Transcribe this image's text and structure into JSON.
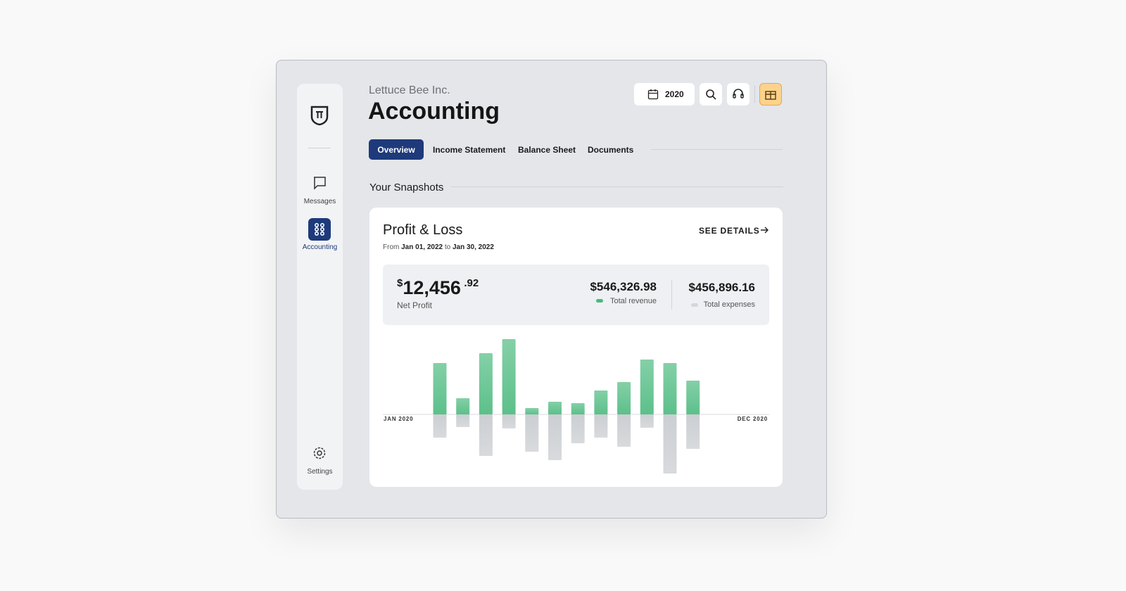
{
  "company": "Lettuce Bee Inc.",
  "title": "Accounting",
  "toolbar": {
    "year": "2020"
  },
  "sidebar": {
    "items": [
      {
        "label": "Messages"
      },
      {
        "label": "Accounting"
      },
      {
        "label": "Settings"
      }
    ]
  },
  "tabs": [
    "Overview",
    "Income Statement",
    "Balance Sheet",
    "Documents"
  ],
  "section_title": "Your Snapshots",
  "card": {
    "title": "Profit & Loss",
    "see_details": "SEE DETAILS",
    "range": {
      "prefix": "From",
      "start": "Jan 01, 2022",
      "joiner": "to",
      "end": "Jan 30, 2022"
    },
    "net_profit": {
      "currency": "$",
      "whole": "12,456",
      "cents": ".92",
      "label": "Net Profit"
    },
    "revenue": {
      "amount": "$546,326.98",
      "label": "Total revenue",
      "color": "#4cb97a"
    },
    "expenses": {
      "amount": "$456,896.16",
      "label": "Total expenses",
      "color": "#d3d6da"
    },
    "chart": {
      "type": "bar",
      "x_start": "JAN 2020",
      "x_end": "DEC 2020",
      "series": [
        {
          "color": "#5cc08a",
          "values": [
            73,
            23,
            87,
            107,
            9,
            18,
            16,
            34,
            46,
            78,
            73,
            48
          ]
        },
        {
          "color": "#cbced2",
          "values": [
            33,
            18,
            59,
            20,
            53,
            65,
            41,
            33,
            46,
            19,
            84,
            49
          ]
        }
      ]
    }
  }
}
